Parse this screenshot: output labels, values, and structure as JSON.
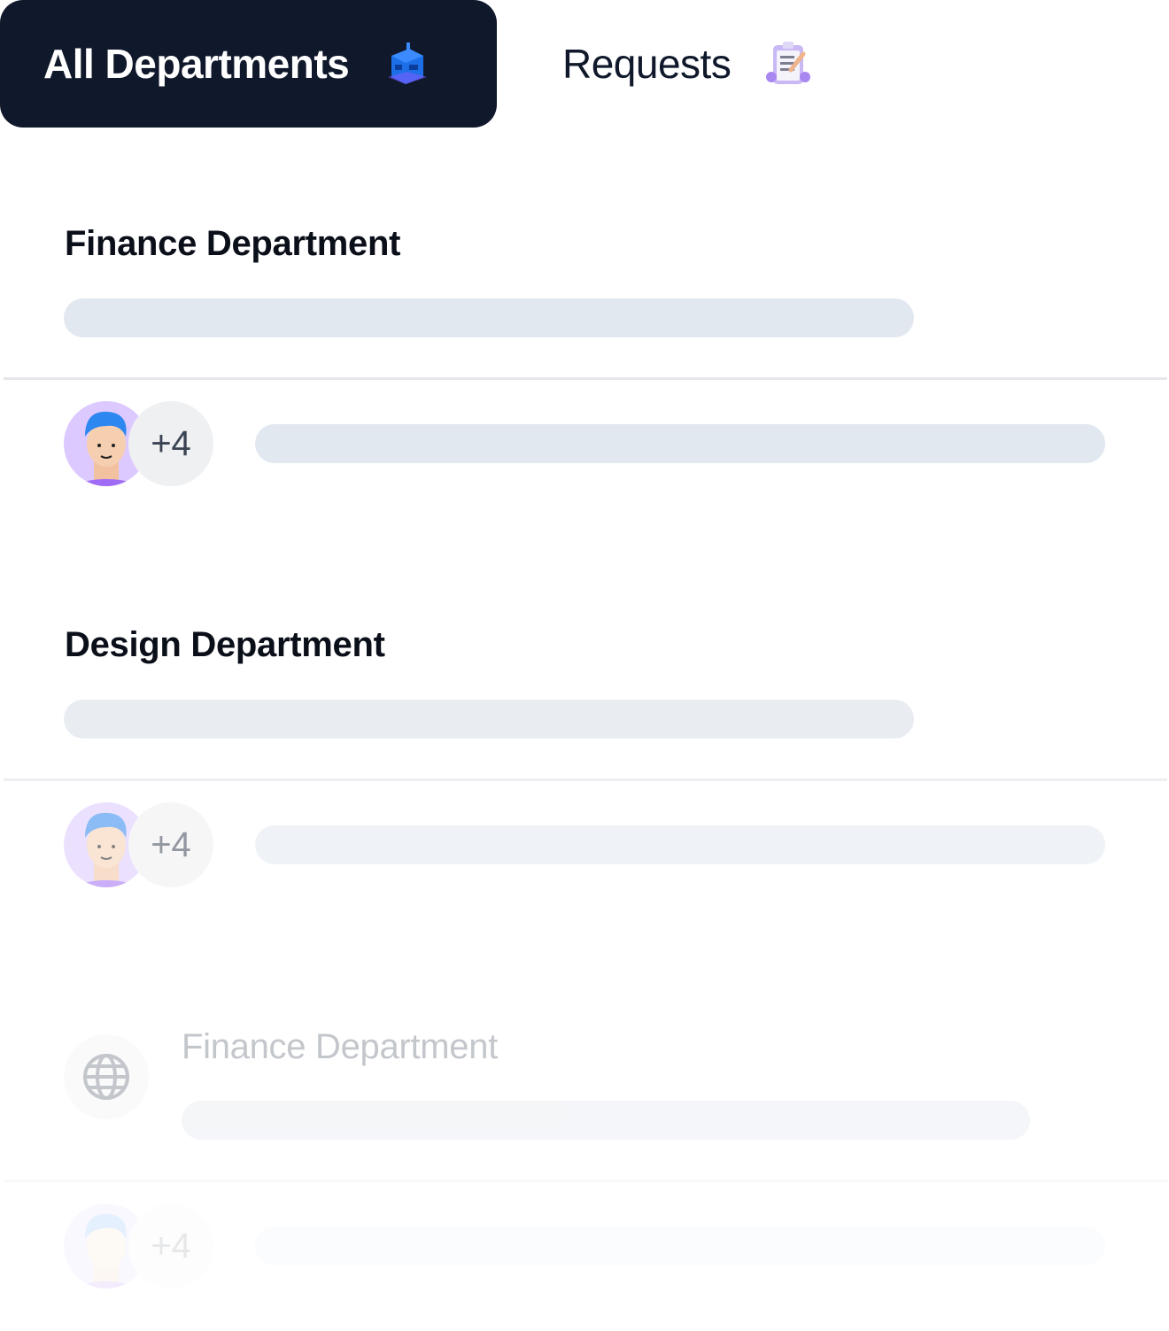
{
  "tabs": [
    {
      "label": "All Departments",
      "icon": "building-icon",
      "active": true
    },
    {
      "label": "Requests",
      "icon": "clipboard-icon",
      "active": false
    }
  ],
  "sections": [
    {
      "title": "Finance Department",
      "more_count": "+4"
    },
    {
      "title": "Design Department",
      "more_count": "+4"
    },
    {
      "title": "Finance Department",
      "more_count": "+4",
      "icon": "globe-icon"
    }
  ],
  "colors": {
    "tab_active_bg": "#10182b",
    "skeleton": "#e2e8f0",
    "avatar_bg": "#dcc9ff"
  }
}
